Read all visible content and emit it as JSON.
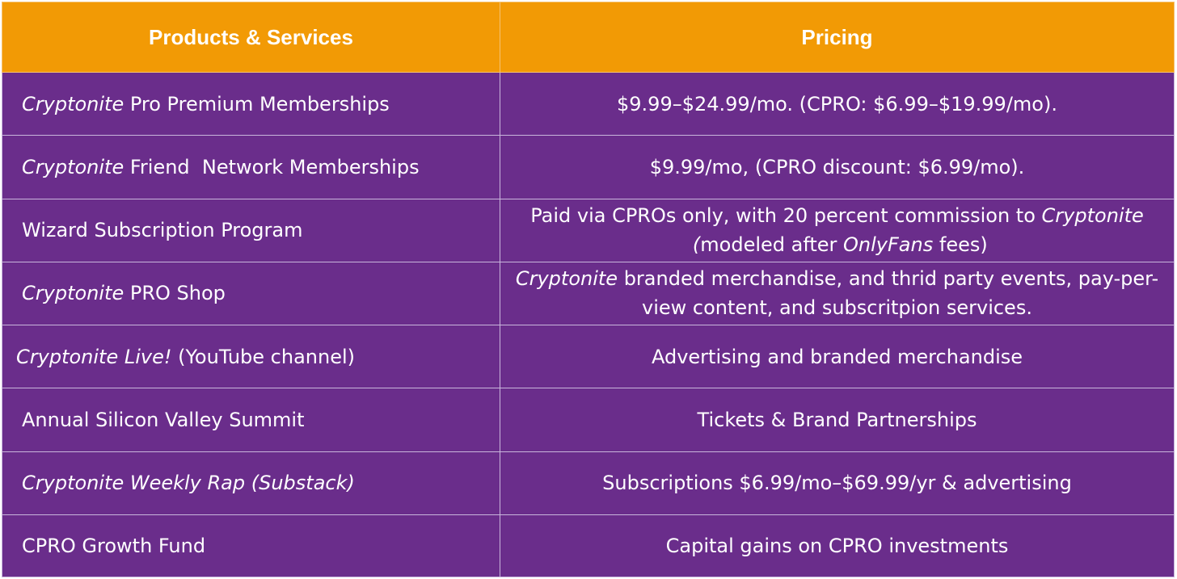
{
  "header": {
    "products_label": "Products & Services",
    "pricing_label": "Pricing"
  },
  "colors": {
    "header_bg": "#f29a05",
    "row_bg": "#6a2d8b",
    "text": "#ffffff"
  },
  "rows": [
    {
      "product": {
        "italic": "Cryptonite",
        "rest": " Pro Premium Memberships"
      },
      "pricing": "$9.99–$24.99/mo. (CPRO: $6.99–$19.99/mo)."
    },
    {
      "product": {
        "italic": "Cryptonite",
        "rest": " Friend  Network Memberships"
      },
      "pricing": "$9.99/mo, (CPRO discount: $6.99/mo)."
    },
    {
      "product": {
        "text": "Wizard Subscription Program"
      },
      "pricing": {
        "part1": "Paid via CPROs only, with 20 percent commission to ",
        "italic1": "Cryptonite",
        "italic2": " (",
        "part2": "modeled after ",
        "italic3": "OnlyFans",
        "part3": " fees)"
      }
    },
    {
      "product": {
        "italic": "Cryptonite",
        "rest": " PRO Shop"
      },
      "pricing": {
        "italic": "Cryptonite",
        "rest": " branded merchandise, and thrid party events, pay-per-view content, and subscritpion services."
      }
    },
    {
      "product": {
        "italic": "Cryptonite Live!",
        "rest": " (YouTube channel)"
      },
      "pricing": "Advertising and branded merchandise"
    },
    {
      "product": {
        "text": "Annual Silicon Valley Summit"
      },
      "pricing": "Tickets & Brand Partnerships"
    },
    {
      "product": {
        "italic": "Cryptonite Weekly Rap (Substack)"
      },
      "pricing": "Subscriptions $6.99/mo–$69.99/yr & advertising"
    },
    {
      "product": {
        "text": "CPRO Growth Fund"
      },
      "pricing": "Capital gains on CPRO investments"
    }
  ]
}
